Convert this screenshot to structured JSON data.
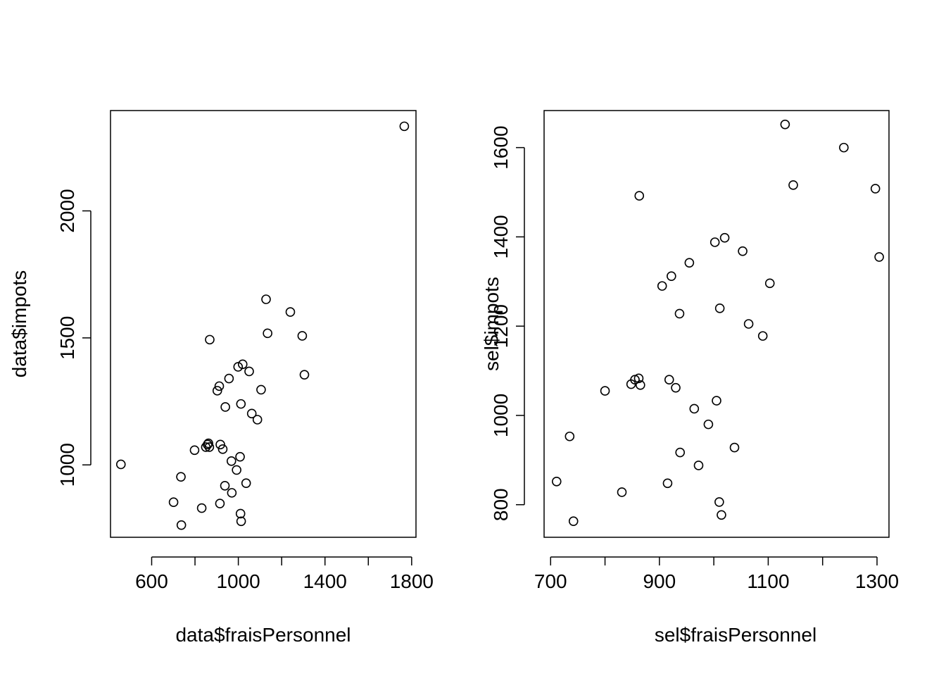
{
  "chart_data": [
    {
      "type": "scatter",
      "xlabel": "data$fraisPersonnel",
      "ylabel": "data$impots",
      "xlim": [
        410,
        1820
      ],
      "ylim": [
        715,
        2395
      ],
      "xticks": [
        600,
        1000,
        1400,
        1800
      ],
      "xticks_all": [
        600,
        800,
        1000,
        1200,
        1400,
        1600,
        1800
      ],
      "yticks": [
        1000,
        1500,
        2000
      ],
      "marker": "open-circle",
      "color": "#000000",
      "points": [
        [
          458,
          1002
        ],
        [
          735,
          953
        ],
        [
          701,
          853
        ],
        [
          737,
          763
        ],
        [
          831,
          830
        ],
        [
          798,
          1058
        ],
        [
          850,
          1070
        ],
        [
          858,
          1080
        ],
        [
          862,
          1085
        ],
        [
          866,
          1070
        ],
        [
          917,
          1080
        ],
        [
          928,
          1062
        ],
        [
          912,
          1310
        ],
        [
          903,
          1292
        ],
        [
          940,
          1228
        ],
        [
          957,
          1340
        ],
        [
          868,
          1493
        ],
        [
          999,
          1386
        ],
        [
          1020,
          1396
        ],
        [
          1050,
          1368
        ],
        [
          1012,
          1240
        ],
        [
          1062,
          1202
        ],
        [
          1088,
          1178
        ],
        [
          1105,
          1296
        ],
        [
          1128,
          1652
        ],
        [
          1135,
          1518
        ],
        [
          1240,
          1602
        ],
        [
          1295,
          1508
        ],
        [
          1305,
          1355
        ],
        [
          968,
          1015
        ],
        [
          992,
          980
        ],
        [
          1008,
          1032
        ],
        [
          938,
          918
        ],
        [
          970,
          890
        ],
        [
          915,
          848
        ],
        [
          1036,
          928
        ],
        [
          1010,
          808
        ],
        [
          1013,
          778
        ],
        [
          1766,
          2333
        ]
      ]
    },
    {
      "type": "scatter",
      "xlabel": "sel$fraisPersonnel",
      "ylabel": "sel$impots",
      "xlim": [
        688,
        1322
      ],
      "ylim": [
        727,
        1683
      ],
      "xticks": [
        700,
        900,
        1100,
        1300
      ],
      "xticks_all": [
        700,
        800,
        900,
        1000,
        1100,
        1200,
        1300
      ],
      "yticks": [
        800,
        1000,
        1200,
        1400,
        1600
      ],
      "marker": "open-circle",
      "color": "#000000",
      "points": [
        [
          711,
          852
        ],
        [
          735,
          953
        ],
        [
          742,
          763
        ],
        [
          831,
          828
        ],
        [
          800,
          1055
        ],
        [
          848,
          1070
        ],
        [
          855,
          1080
        ],
        [
          862,
          1083
        ],
        [
          865,
          1068
        ],
        [
          918,
          1080
        ],
        [
          930,
          1062
        ],
        [
          905,
          1290
        ],
        [
          922,
          1312
        ],
        [
          937,
          1228
        ],
        [
          955,
          1342
        ],
        [
          863,
          1492
        ],
        [
          1002,
          1388
        ],
        [
          1020,
          1398
        ],
        [
          1053,
          1368
        ],
        [
          1011,
          1240
        ],
        [
          1064,
          1205
        ],
        [
          1090,
          1178
        ],
        [
          1103,
          1296
        ],
        [
          1131,
          1652
        ],
        [
          1146,
          1516
        ],
        [
          1239,
          1600
        ],
        [
          1297,
          1508
        ],
        [
          1304,
          1355
        ],
        [
          964,
          1015
        ],
        [
          990,
          980
        ],
        [
          1005,
          1033
        ],
        [
          938,
          917
        ],
        [
          972,
          888
        ],
        [
          915,
          848
        ],
        [
          1038,
          928
        ],
        [
          1010,
          806
        ],
        [
          1014,
          777
        ]
      ]
    }
  ]
}
